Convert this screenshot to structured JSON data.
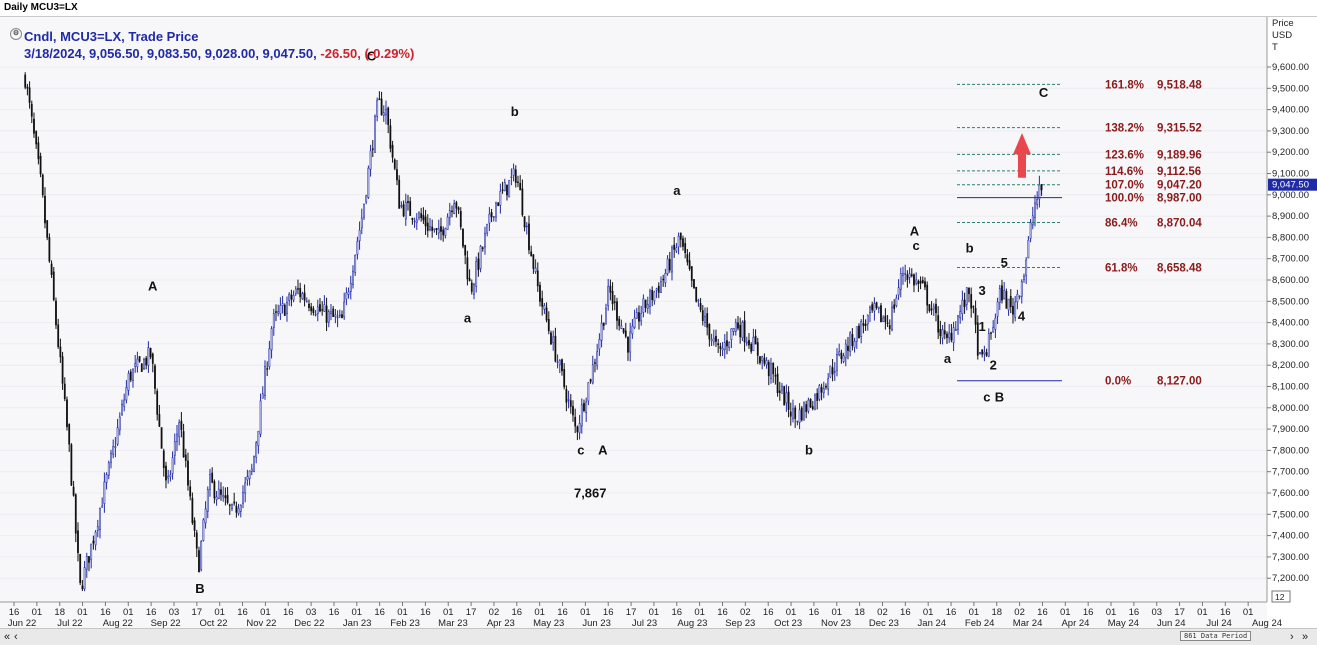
{
  "window": {
    "title": "Daily MCU3=LX"
  },
  "legend": {
    "line1": "Cndl, MCU3=LX, Trade Price",
    "line2_prefix": "3/18/2024, 9,056.50, 9,083.50, 9,028.00, 9,047.50,",
    "line2_change": "-26.50, (-0.29%)"
  },
  "axis": {
    "price_header": [
      "Price",
      "USD",
      "T"
    ],
    "y_ticks": [
      "9,600.00",
      "9,500.00",
      "9,400.00",
      "9,300.00",
      "9,200.00",
      "9,100.00",
      "9,000.00",
      "8,900.00",
      "8,800.00",
      "8,700.00",
      "8,600.00",
      "8,500.00",
      "8,400.00",
      "8,300.00",
      "8,200.00",
      "8,100.00",
      "8,000.00",
      "7,900.00",
      "7,800.00",
      "7,700.00",
      "7,600.00",
      "7,500.00",
      "7,400.00",
      "7,300.00",
      "7,200.00"
    ],
    "y_tick_values": [
      9600,
      9500,
      9400,
      9300,
      9200,
      9100,
      9000,
      8900,
      8800,
      8700,
      8600,
      8500,
      8400,
      8300,
      8200,
      8100,
      8000,
      7900,
      7800,
      7700,
      7600,
      7500,
      7400,
      7300,
      7200
    ],
    "current_price_label": "9,047.50",
    "bottom_right_label": "12",
    "day_ticks": [
      "16",
      "01",
      "18",
      "01",
      "16",
      "01",
      "16",
      "03",
      "17",
      "01",
      "16",
      "01",
      "16",
      "03",
      "16",
      "01",
      "16",
      "01",
      "16",
      "01",
      "17",
      "02",
      "16",
      "01",
      "16",
      "01",
      "16",
      "17",
      "01",
      "16",
      "01",
      "16",
      "02",
      "16",
      "01",
      "16",
      "01",
      "18",
      "02",
      "16",
      "01",
      "16",
      "01",
      "18",
      "02",
      "16",
      "01",
      "16",
      "01",
      "16",
      "03",
      "17",
      "01",
      "16",
      "01",
      "16"
    ],
    "months": [
      "Jun 22",
      "Jul 22",
      "Aug 22",
      "Sep 22",
      "Oct 22",
      "Nov 22",
      "Dec 22",
      "Jan 23",
      "Feb 23",
      "Mar 23",
      "Apr 23",
      "May 23",
      "Jun 23",
      "Jul 23",
      "Aug 23",
      "Sep 23",
      "Oct 23",
      "Nov 23",
      "Dec 23",
      "Jan 24",
      "Feb 24",
      "Mar 24",
      "Apr 24",
      "May 24",
      "Jun 24",
      "Jul 24",
      "Aug 24"
    ]
  },
  "chart_data": {
    "type": "candlestick",
    "title": "Daily MCU3=LX",
    "instrument": "MCU3=LX",
    "ylabel": "Price USD",
    "ylim": [
      7100,
      9700
    ],
    "x_range": [
      "Jun 22",
      "Aug 24"
    ],
    "colors": {
      "up": "#1f2aa6",
      "down": "#111111",
      "projection": "#2e7d74",
      "fib_text": "#8b1a1a",
      "arrow": "#e8484d"
    },
    "last_candle": {
      "date": "3/18/2024",
      "open": 9056.5,
      "high": 9083.5,
      "low": 9028.0,
      "close": 9047.5,
      "change": -26.5,
      "change_pct": -0.29
    },
    "price_path_anchors": [
      {
        "date": "2022-06-10",
        "price": 9550
      },
      {
        "date": "2022-06-20",
        "price": 9050
      },
      {
        "date": "2022-07-01",
        "price": 8300
      },
      {
        "date": "2022-07-08",
        "price": 7800
      },
      {
        "date": "2022-07-15",
        "price": 7150
      },
      {
        "date": "2022-07-22",
        "price": 7350
      },
      {
        "date": "2022-08-05",
        "price": 7800
      },
      {
        "date": "2022-08-15",
        "price": 8150
      },
      {
        "date": "2022-08-29",
        "price": 8250
      },
      {
        "date": "2022-09-08",
        "price": 7600
      },
      {
        "date": "2022-09-16",
        "price": 7950
      },
      {
        "date": "2022-09-28",
        "price": 7250
      },
      {
        "date": "2022-10-05",
        "price": 7650
      },
      {
        "date": "2022-10-20",
        "price": 7500
      },
      {
        "date": "2022-11-01",
        "price": 7700
      },
      {
        "date": "2022-11-14",
        "price": 8400
      },
      {
        "date": "2022-11-30",
        "price": 8550
      },
      {
        "date": "2022-12-15",
        "price": 8450
      },
      {
        "date": "2022-12-28",
        "price": 8400
      },
      {
        "date": "2023-01-10",
        "price": 8900
      },
      {
        "date": "2023-01-20",
        "price": 9420
      },
      {
        "date": "2023-01-25",
        "price": 9400
      },
      {
        "date": "2023-02-03",
        "price": 8950
      },
      {
        "date": "2023-02-15",
        "price": 8900
      },
      {
        "date": "2023-02-28",
        "price": 8800
      },
      {
        "date": "2023-03-10",
        "price": 9000
      },
      {
        "date": "2023-03-20",
        "price": 8550
      },
      {
        "date": "2023-04-04",
        "price": 8950
      },
      {
        "date": "2023-04-18",
        "price": 9100
      },
      {
        "date": "2023-05-02",
        "price": 8550
      },
      {
        "date": "2023-05-15",
        "price": 8200
      },
      {
        "date": "2023-05-26",
        "price": 7890
      },
      {
        "date": "2023-06-06",
        "price": 8200
      },
      {
        "date": "2023-06-16",
        "price": 8550
      },
      {
        "date": "2023-06-28",
        "price": 8300
      },
      {
        "date": "2023-07-06",
        "price": 8450
      },
      {
        "date": "2023-07-20",
        "price": 8600
      },
      {
        "date": "2023-07-31",
        "price": 8800
      },
      {
        "date": "2023-08-10",
        "price": 8500
      },
      {
        "date": "2023-08-25",
        "price": 8250
      },
      {
        "date": "2023-09-05",
        "price": 8400
      },
      {
        "date": "2023-09-15",
        "price": 8300
      },
      {
        "date": "2023-09-28",
        "price": 8150
      },
      {
        "date": "2023-10-12",
        "price": 7950
      },
      {
        "date": "2023-10-25",
        "price": 8050
      },
      {
        "date": "2023-11-06",
        "price": 8200
      },
      {
        "date": "2023-11-20",
        "price": 8350
      },
      {
        "date": "2023-12-01",
        "price": 8450
      },
      {
        "date": "2023-12-11",
        "price": 8400
      },
      {
        "date": "2023-12-20",
        "price": 8650
      },
      {
        "date": "2024-01-02",
        "price": 8550
      },
      {
        "date": "2024-01-16",
        "price": 8300
      },
      {
        "date": "2024-01-31",
        "price": 8550
      },
      {
        "date": "2024-02-07",
        "price": 8200
      },
      {
        "date": "2024-02-12",
        "price": 8300
      },
      {
        "date": "2024-02-20",
        "price": 8550
      },
      {
        "date": "2024-02-27",
        "price": 8450
      },
      {
        "date": "2024-03-06",
        "price": 8650
      },
      {
        "date": "2024-03-12",
        "price": 8950
      },
      {
        "date": "2024-03-18",
        "price": 9050
      }
    ],
    "fibonacci_levels": [
      {
        "pct": "161.8%",
        "value": "9,518.48",
        "price": 9518.48
      },
      {
        "pct": "138.2%",
        "value": "9,315.52",
        "price": 9315.52
      },
      {
        "pct": "123.6%",
        "value": "9,189.96",
        "price": 9189.96
      },
      {
        "pct": "114.6%",
        "value": "9,112.56",
        "price": 9112.56
      },
      {
        "pct": "107.0%",
        "value": "9,047.20",
        "price": 9047.2
      },
      {
        "pct": "100.0%",
        "value": "8,987.00",
        "price": 8987.0
      },
      {
        "pct": "86.4%",
        "value": "8,870.04",
        "price": 8870.04
      },
      {
        "pct": "61.8%",
        "value": "8,658.48",
        "price": 8658.48
      },
      {
        "pct": "0.0%",
        "value": "8,127.00",
        "price": 8127.0
      }
    ],
    "annotations": [
      {
        "text": "C",
        "date": "2023-01-16",
        "price": 9630
      },
      {
        "text": "b",
        "date": "2023-04-17",
        "price": 9370
      },
      {
        "text": "A",
        "date": "2022-08-30",
        "price": 8550
      },
      {
        "text": "B",
        "date": "2022-09-29",
        "price": 7130
      },
      {
        "text": "a",
        "date": "2023-03-18",
        "price": 8400
      },
      {
        "text": "c",
        "date": "2023-05-29",
        "price": 7780
      },
      {
        "text": "A",
        "date": "2023-06-12",
        "price": 7780
      },
      {
        "text": "7,867",
        "date": "2023-06-04",
        "price": 7580
      },
      {
        "text": "a",
        "date": "2023-07-29",
        "price": 9000
      },
      {
        "text": "b",
        "date": "2023-10-21",
        "price": 7780
      },
      {
        "text": "A",
        "date": "2023-12-27",
        "price": 8810
      },
      {
        "text": "c",
        "date": "2023-12-28",
        "price": 8740
      },
      {
        "text": "a",
        "date": "2024-01-17",
        "price": 8210
      },
      {
        "text": "b",
        "date": "2024-01-31",
        "price": 8730
      },
      {
        "text": "5",
        "date": "2024-02-22",
        "price": 8660
      },
      {
        "text": "3",
        "date": "2024-02-08",
        "price": 8530
      },
      {
        "text": "1",
        "date": "2024-02-08",
        "price": 8360
      },
      {
        "text": "2",
        "date": "2024-02-15",
        "price": 8180
      },
      {
        "text": "4",
        "date": "2024-03-04",
        "price": 8410
      },
      {
        "text": "c",
        "date": "2024-02-11",
        "price": 8030
      },
      {
        "text": "B",
        "date": "2024-02-19",
        "price": 8030
      },
      {
        "text": "C",
        "date": "2024-03-18",
        "price": 9460
      }
    ]
  },
  "navbar": {
    "first": "«",
    "prev": "‹",
    "next": "›",
    "last": "»",
    "data_info": "861 Data Period"
  }
}
